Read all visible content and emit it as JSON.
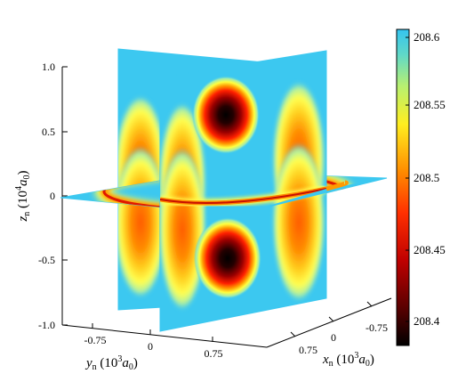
{
  "chart_data": {
    "type": "heatmap",
    "title": "",
    "plot": "3D orthogonal slice plot (volume slices at x_n = 0, y_n = 0, z_n = 0)",
    "axes": {
      "z": {
        "label_main": "z",
        "label_sub": "n",
        "label_unit_pre": " (10",
        "label_unit_exp": "4",
        "label_unit_post": "a",
        "label_unit_sub": "0",
        "label_close": ")",
        "ticks": [
          "1.0",
          "0.5",
          "0",
          "-0.5",
          "-1.0"
        ],
        "range": [
          -1.0,
          1.0
        ]
      },
      "y": {
        "label_main": "y",
        "label_sub": "n",
        "label_unit_pre": " (10",
        "label_unit_exp": "3",
        "label_unit_post": "a",
        "label_unit_sub": "0",
        "label_close": ")",
        "ticks": [
          "-0.75",
          "0",
          "0.75"
        ],
        "range": [
          -1.0,
          1.0
        ]
      },
      "x": {
        "label_main": "x",
        "label_sub": "n",
        "label_unit_pre": " (10",
        "label_unit_exp": "3",
        "label_unit_post": "a",
        "label_unit_sub": "0",
        "label_close": ")",
        "ticks": [
          "-0.75",
          "0",
          "0.75"
        ],
        "range": [
          -1.0,
          1.0
        ]
      }
    },
    "colorbar": {
      "ticks": [
        "208.6",
        "208.55",
        "208.5",
        "208.45",
        "208.4"
      ],
      "range": [
        208.38,
        208.61
      ],
      "colormap": "hot-to-cyan",
      "stops": [
        "#000000",
        "#b00000",
        "#ff2000",
        "#ff9a00",
        "#ffff40",
        "#8ee8a0",
        "#3cc8f0"
      ]
    },
    "features": {
      "background_value": 208.61,
      "minimum_lobes": [
        {
          "plane": "x=0",
          "y": 0,
          "z": 0.55,
          "value": 208.38
        },
        {
          "plane": "x=0",
          "y": 0,
          "z": -0.55,
          "value": 208.38
        }
      ],
      "ring": {
        "plane": "z=0",
        "radius": 0.9,
        "value": 208.48
      },
      "side_lobes": [
        {
          "plane": "y=0",
          "x": -0.9,
          "value": 208.5
        },
        {
          "plane": "y=0",
          "x": 0.9,
          "value": 208.5
        },
        {
          "plane": "x=0",
          "y": -0.9,
          "value": 208.5
        },
        {
          "plane": "x=0",
          "y": 0.9,
          "value": 208.5
        }
      ]
    }
  }
}
